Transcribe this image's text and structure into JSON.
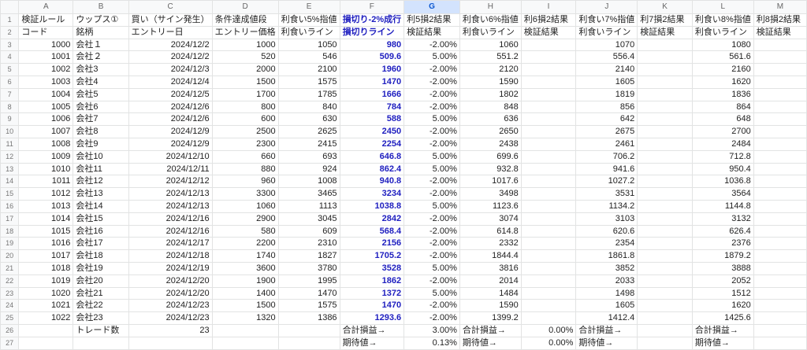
{
  "sheet": {
    "columns": [
      "A",
      "B",
      "C",
      "D",
      "E",
      "F",
      "G",
      "H",
      "I",
      "J",
      "K",
      "L",
      "M"
    ],
    "selected_column": "G",
    "accent_color": "#2020c0",
    "rows": [
      [
        "検証ルール",
        "ウップス①",
        "買い（サイン発生）",
        "条件達成値段",
        "利食い5%指値",
        "損切り-2%成行",
        "利5損2結果",
        "利食い6%指値",
        "利6損2結果",
        "利食い7%指値",
        "利7損2結果",
        "利食い8%指値",
        "利8損2結果"
      ],
      [
        "コード",
        "銘柄",
        "エントリー日",
        "エントリー価格",
        "利食いライン",
        "損切りライン",
        "検証結果",
        "利食いライン",
        "検証結果",
        "利食いライン",
        "検証結果",
        "利食いライン",
        "検証結果"
      ],
      [
        "1000",
        "会社１",
        "2024/12/2",
        "1000",
        "1050",
        "980",
        "-2.00%",
        "1060",
        "",
        "1070",
        "",
        "1080",
        ""
      ],
      [
        "1001",
        "会社２",
        "2024/12/2",
        "520",
        "546",
        "509.6",
        "5.00%",
        "551.2",
        "",
        "556.4",
        "",
        "561.6",
        ""
      ],
      [
        "1002",
        "会社3",
        "2024/12/3",
        "2000",
        "2100",
        "1960",
        "-2.00%",
        "2120",
        "",
        "2140",
        "",
        "2160",
        ""
      ],
      [
        "1003",
        "会社4",
        "2024/12/4",
        "1500",
        "1575",
        "1470",
        "-2.00%",
        "1590",
        "",
        "1605",
        "",
        "1620",
        ""
      ],
      [
        "1004",
        "会社5",
        "2024/12/5",
        "1700",
        "1785",
        "1666",
        "-2.00%",
        "1802",
        "",
        "1819",
        "",
        "1836",
        ""
      ],
      [
        "1005",
        "会社6",
        "2024/12/6",
        "800",
        "840",
        "784",
        "-2.00%",
        "848",
        "",
        "856",
        "",
        "864",
        ""
      ],
      [
        "1006",
        "会社7",
        "2024/12/6",
        "600",
        "630",
        "588",
        "5.00%",
        "636",
        "",
        "642",
        "",
        "648",
        ""
      ],
      [
        "1007",
        "会社8",
        "2024/12/9",
        "2500",
        "2625",
        "2450",
        "-2.00%",
        "2650",
        "",
        "2675",
        "",
        "2700",
        ""
      ],
      [
        "1008",
        "会社9",
        "2024/12/9",
        "2300",
        "2415",
        "2254",
        "-2.00%",
        "2438",
        "",
        "2461",
        "",
        "2484",
        ""
      ],
      [
        "1009",
        "会社10",
        "2024/12/10",
        "660",
        "693",
        "646.8",
        "5.00%",
        "699.6",
        "",
        "706.2",
        "",
        "712.8",
        ""
      ],
      [
        "1010",
        "会社11",
        "2024/12/11",
        "880",
        "924",
        "862.4",
        "5.00%",
        "932.8",
        "",
        "941.6",
        "",
        "950.4",
        ""
      ],
      [
        "1011",
        "会社12",
        "2024/12/12",
        "960",
        "1008",
        "940.8",
        "-2.00%",
        "1017.6",
        "",
        "1027.2",
        "",
        "1036.8",
        ""
      ],
      [
        "1012",
        "会社13",
        "2024/12/13",
        "3300",
        "3465",
        "3234",
        "-2.00%",
        "3498",
        "",
        "3531",
        "",
        "3564",
        ""
      ],
      [
        "1013",
        "会社14",
        "2024/12/13",
        "1060",
        "1113",
        "1038.8",
        "5.00%",
        "1123.6",
        "",
        "1134.2",
        "",
        "1144.8",
        ""
      ],
      [
        "1014",
        "会社15",
        "2024/12/16",
        "2900",
        "3045",
        "2842",
        "-2.00%",
        "3074",
        "",
        "3103",
        "",
        "3132",
        ""
      ],
      [
        "1015",
        "会社16",
        "2024/12/16",
        "580",
        "609",
        "568.4",
        "-2.00%",
        "614.8",
        "",
        "620.6",
        "",
        "626.4",
        ""
      ],
      [
        "1016",
        "会社17",
        "2024/12/17",
        "2200",
        "2310",
        "2156",
        "-2.00%",
        "2332",
        "",
        "2354",
        "",
        "2376",
        ""
      ],
      [
        "1017",
        "会社18",
        "2024/12/18",
        "1740",
        "1827",
        "1705.2",
        "-2.00%",
        "1844.4",
        "",
        "1861.8",
        "",
        "1879.2",
        ""
      ],
      [
        "1018",
        "会社19",
        "2024/12/19",
        "3600",
        "3780",
        "3528",
        "5.00%",
        "3816",
        "",
        "3852",
        "",
        "3888",
        ""
      ],
      [
        "1019",
        "会社20",
        "2024/12/20",
        "1900",
        "1995",
        "1862",
        "-2.00%",
        "2014",
        "",
        "2033",
        "",
        "2052",
        ""
      ],
      [
        "1020",
        "会社21",
        "2024/12/20",
        "1400",
        "1470",
        "1372",
        "5.00%",
        "1484",
        "",
        "1498",
        "",
        "1512",
        ""
      ],
      [
        "1021",
        "会社22",
        "2024/12/23",
        "1500",
        "1575",
        "1470",
        "-2.00%",
        "1590",
        "",
        "1605",
        "",
        "1620",
        ""
      ],
      [
        "1022",
        "会社23",
        "2024/12/23",
        "1320",
        "1386",
        "1293.6",
        "-2.00%",
        "1399.2",
        "",
        "1412.4",
        "",
        "1425.6",
        ""
      ],
      [
        "",
        "トレード数",
        "23",
        "",
        "",
        "合計損益→",
        "3.00%",
        "合計損益→",
        "0.00%",
        "合計損益→",
        "",
        "合計損益→",
        ""
      ],
      [
        "",
        "",
        "",
        "",
        "",
        "期待値→",
        "0.13%",
        "期待値→",
        "0.00%",
        "期待値→",
        "",
        "期待値→",
        ""
      ]
    ]
  }
}
